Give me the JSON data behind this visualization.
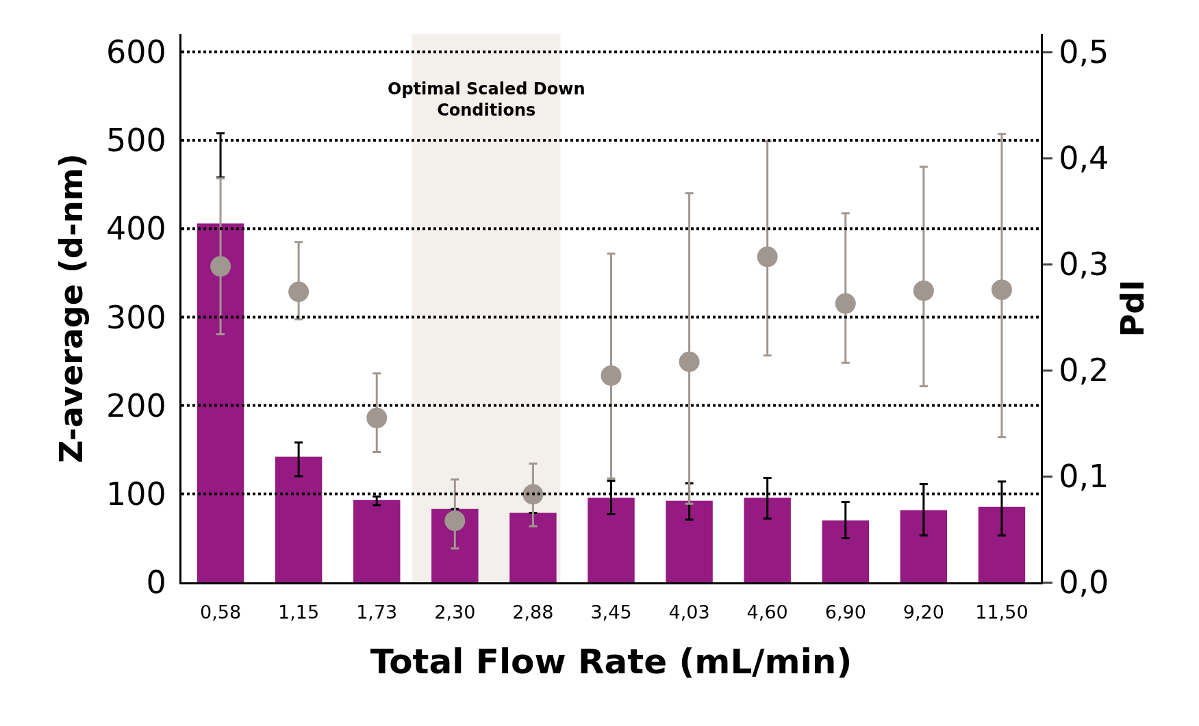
{
  "chart_data": {
    "type": "bar",
    "xlabel": "Total Flow Rate (mL/min)",
    "ylabel": "Z-average (d-nm)",
    "y2label": "PdI",
    "categories": [
      "0,58",
      "1,15",
      "1,73",
      "2,30",
      "2,88",
      "3,45",
      "4,03",
      "4,60",
      "6,90",
      "9,20",
      "11,50"
    ],
    "series": [
      {
        "type": "bar",
        "color": "#951a81",
        "values": [
          406,
          142,
          93,
          83,
          78.5,
          95.6,
          92.4,
          95.6,
          70,
          81.7,
          85.3
        ],
        "errors": [
          [
            458,
            508
          ],
          [
            120,
            158
          ],
          [
            87,
            97
          ],
          null,
          null,
          [
            77,
            115
          ],
          [
            71,
            112
          ],
          [
            72,
            118
          ],
          [
            50,
            91
          ],
          [
            53,
            111
          ],
          [
            53,
            114
          ]
        ]
      },
      {
        "type": "scatter",
        "axis": "y2",
        "color": "#a09790",
        "values": [
          0.298,
          0.274,
          0.155,
          0.058,
          0.083,
          0.195,
          0.208,
          0.307,
          0.263,
          0.275,
          0.276
        ],
        "errors": [
          [
            0.234,
            0.381
          ],
          [
            0.248,
            0.321
          ],
          [
            0.123,
            0.197
          ],
          [
            0.032,
            0.097
          ],
          [
            0.053,
            0.112
          ],
          [
            0.098,
            0.31
          ],
          [
            0.074,
            0.367
          ],
          [
            0.214,
            0.416
          ],
          [
            0.207,
            0.348
          ],
          [
            0.185,
            0.392
          ],
          [
            0.137,
            0.423
          ]
        ]
      }
    ],
    "ylim": [
      0,
      620
    ],
    "yticks": [
      0,
      100,
      200,
      300,
      400,
      500,
      600
    ],
    "y2lim": [
      0,
      0.517
    ],
    "y2ticks": [
      {
        "value": 0,
        "label": "0,0"
      },
      {
        "value": 0.1,
        "label": "0,1"
      },
      {
        "value": 0.2,
        "label": "0,2"
      },
      {
        "value": 0.3,
        "label": "0,3"
      },
      {
        "value": 0.4,
        "label": "0,4"
      },
      {
        "value": 0.5,
        "label": "0,5"
      }
    ],
    "bands": [
      {
        "axis": "x",
        "from": "2,30",
        "to": "2,88",
        "label": "Optimal Scaled Down\nConditions",
        "color": "#f3f0ec"
      }
    ],
    "grid": "y",
    "marker": "circle",
    "legend": false
  }
}
